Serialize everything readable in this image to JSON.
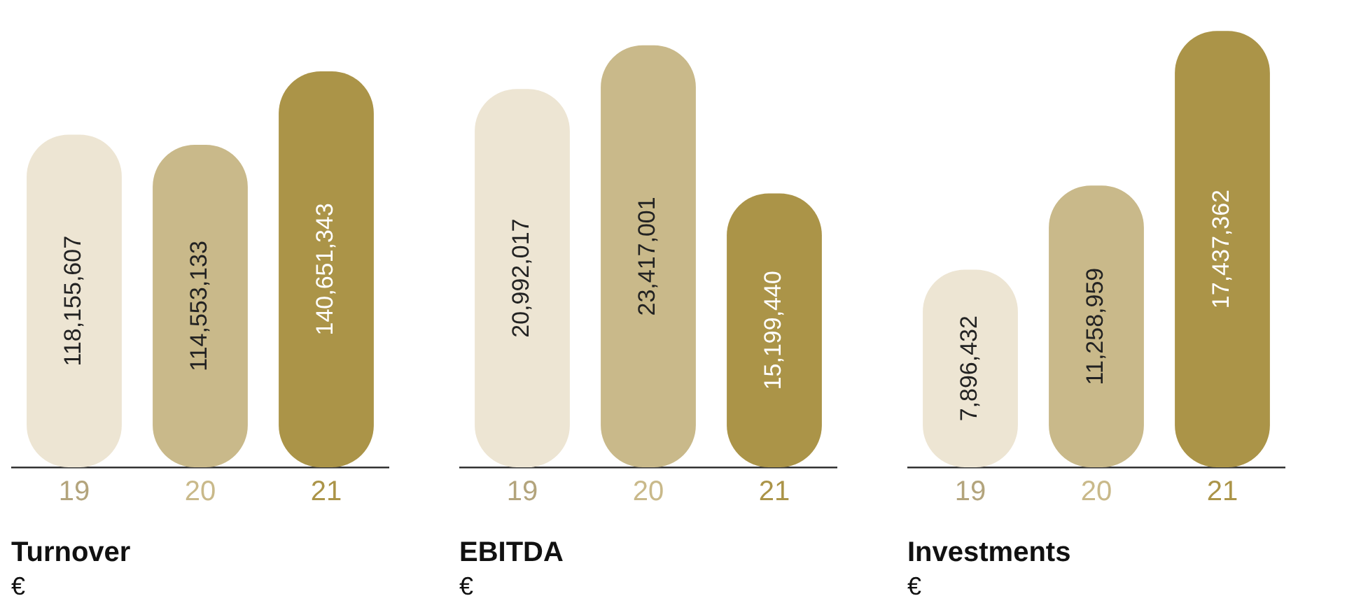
{
  "chart_data": [
    {
      "type": "bar",
      "title": "Turnover",
      "subtitle": "€",
      "categories": [
        "19",
        "20",
        "21"
      ],
      "values": [
        118155607,
        114553133,
        140651343
      ],
      "value_labels": [
        "118,155,607",
        "114,553,133",
        "140,651,343"
      ],
      "colors": [
        "#ede5d3",
        "#c9b98a",
        "#ab9448"
      ],
      "grid": false,
      "legend": false
    },
    {
      "type": "bar",
      "title": "EBITDA",
      "subtitle": "€",
      "categories": [
        "19",
        "20",
        "21"
      ],
      "values": [
        20992017,
        23417001,
        15199440
      ],
      "value_labels": [
        "20,992,017",
        "23,417,001",
        "15,199,440"
      ],
      "colors": [
        "#ede5d3",
        "#c9b98a",
        "#ab9448"
      ],
      "grid": false,
      "legend": false
    },
    {
      "type": "bar",
      "title": "Investments",
      "subtitle": "€",
      "categories": [
        "19",
        "20",
        "21"
      ],
      "values": [
        7896432,
        11258959,
        17437362
      ],
      "value_labels": [
        "7,896,432",
        "11,258,959",
        "17,437,362"
      ],
      "colors": [
        "#ede5d3",
        "#c9b98a",
        "#ab9448"
      ],
      "grid": false,
      "legend": false
    }
  ]
}
